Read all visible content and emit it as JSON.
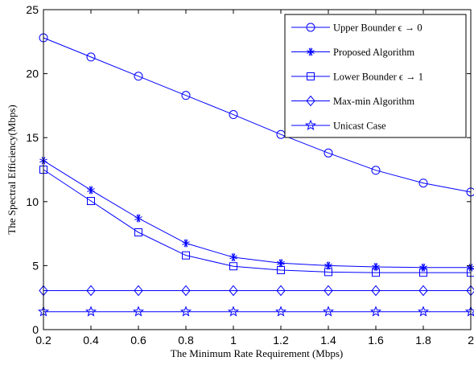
{
  "chart_data": {
    "type": "line",
    "xlabel": "The Minimum Rate Requirement (Mbps)",
    "ylabel": "The Spectral Efficiency(Mbps)",
    "xlim": [
      0.2,
      2
    ],
    "ylim": [
      0,
      25
    ],
    "x_ticks": [
      "0.2",
      "0.4",
      "0.6",
      "0.8",
      "1",
      "1.2",
      "1.4",
      "1.6",
      "1.8",
      "2"
    ],
    "y_ticks": [
      "0",
      "5",
      "10",
      "15",
      "20",
      "25"
    ],
    "grid": false,
    "legend_position": "top-right",
    "x": [
      0.2,
      0.4,
      0.6,
      0.8,
      1.0,
      1.2,
      1.4,
      1.6,
      1.8,
      2.0
    ],
    "series": [
      {
        "name": "Upper Bounder ϵ → 0",
        "marker": "circle",
        "color": "#0000ff",
        "values": [
          22.8,
          21.3,
          19.8,
          18.3,
          16.8,
          15.25,
          13.8,
          12.45,
          11.45,
          10.75
        ]
      },
      {
        "name": "Proposed Algorithm",
        "marker": "asterisk",
        "color": "#0000ff",
        "values": [
          13.2,
          10.9,
          8.7,
          6.75,
          5.65,
          5.2,
          5.0,
          4.9,
          4.85,
          4.85
        ]
      },
      {
        "name": "Lower Bounder ϵ → 1",
        "marker": "square",
        "color": "#0000ff",
        "values": [
          12.5,
          10.05,
          7.6,
          5.8,
          4.95,
          4.65,
          4.5,
          4.45,
          4.45,
          4.45
        ]
      },
      {
        "name": "Max-min Algorithm",
        "marker": "diamond",
        "color": "#0000ff",
        "values": [
          3.05,
          3.05,
          3.05,
          3.05,
          3.05,
          3.05,
          3.05,
          3.05,
          3.05,
          3.05
        ]
      },
      {
        "name": "Unicast Case",
        "marker": "star",
        "color": "#0000ff",
        "values": [
          1.4,
          1.4,
          1.4,
          1.4,
          1.4,
          1.4,
          1.4,
          1.4,
          1.4,
          1.4
        ]
      }
    ]
  }
}
